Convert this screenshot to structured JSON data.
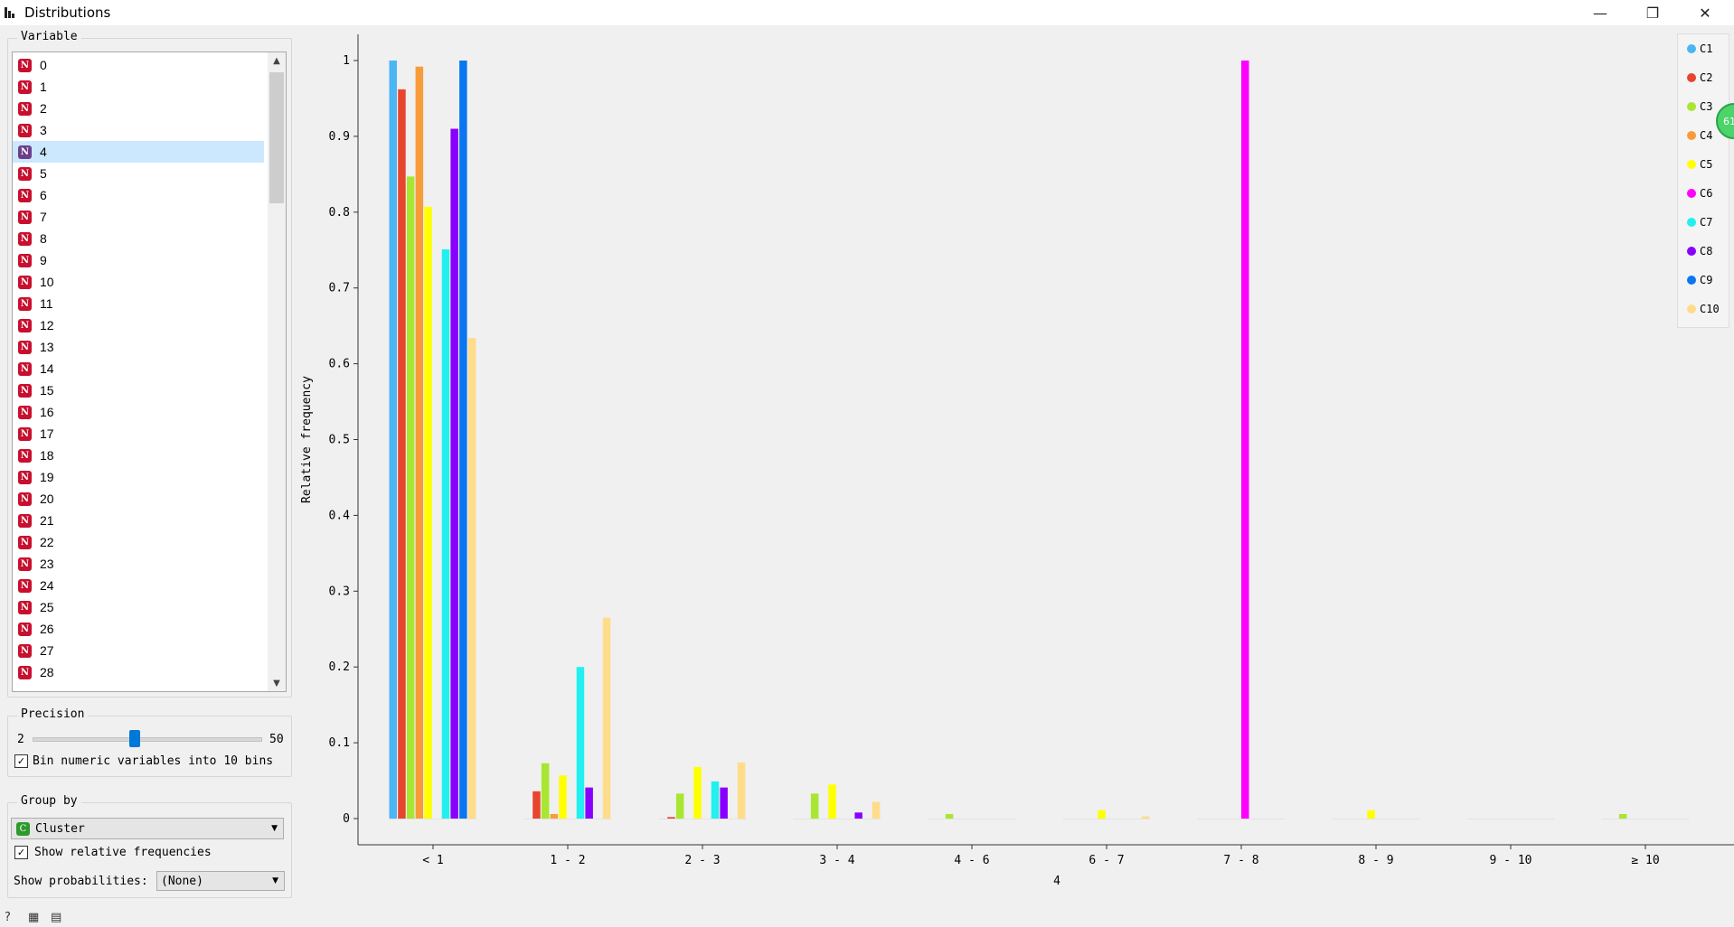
{
  "window": {
    "title": "Distributions",
    "icons": {
      "app": "bar-chart-icon",
      "minimize": "minimize-icon",
      "maximize": "restore-icon",
      "close": "close-icon"
    }
  },
  "variable_panel": {
    "title": "Variable",
    "selected": "4",
    "items": [
      "0",
      "1",
      "2",
      "3",
      "4",
      "5",
      "6",
      "7",
      "8",
      "9",
      "10",
      "11",
      "12",
      "13",
      "14",
      "15",
      "16",
      "17",
      "18",
      "19",
      "20",
      "21",
      "22",
      "23",
      "24",
      "25",
      "26",
      "27",
      "28"
    ],
    "badge": "N"
  },
  "precision": {
    "title": "Precision",
    "min_label": "2",
    "max_label": "50",
    "value": 0.45,
    "bin_checkbox_label": "Bin numeric variables into 10 bins",
    "bin_checked": true
  },
  "group_by": {
    "title": "Group by",
    "selected": "Cluster",
    "badge": "C",
    "show_relative_label": "Show relative frequencies",
    "show_relative_checked": true,
    "show_prob_label": "Show probabilities:",
    "show_prob_value": "(None)"
  },
  "legend": {
    "items": [
      {
        "label": "C1",
        "color": "#4cb6f4"
      },
      {
        "label": "C2",
        "color": "#e8452f"
      },
      {
        "label": "C3",
        "color": "#a8e632"
      },
      {
        "label": "C4",
        "color": "#f89c3a"
      },
      {
        "label": "C5",
        "color": "#ffff00"
      },
      {
        "label": "C6",
        "color": "#ff00ff"
      },
      {
        "label": "C7",
        "color": "#22f0f0"
      },
      {
        "label": "C8",
        "color": "#8a00ff"
      },
      {
        "label": "C9",
        "color": "#0a76f0"
      },
      {
        "label": "C10",
        "color": "#ffdc8a"
      }
    ]
  },
  "badge_text": "61",
  "chart_data": {
    "type": "bar",
    "xlabel": "4",
    "ylabel": "Relative frequency",
    "ylim": [
      0,
      1
    ],
    "yticks": [
      "0",
      "0.1",
      "0.2",
      "0.3",
      "0.4",
      "0.5",
      "0.6",
      "0.7",
      "0.8",
      "0.9",
      "1"
    ],
    "categories": [
      "< 1",
      "1 - 2",
      "2 - 3",
      "3 - 4",
      "4 - 6",
      "6 - 7",
      "7 - 8",
      "8 - 9",
      "9 - 10",
      "≥ 10"
    ],
    "series": [
      {
        "name": "C1",
        "values": [
          1.0,
          0,
          0,
          0,
          0,
          0,
          0,
          0,
          0,
          0
        ]
      },
      {
        "name": "C2",
        "values": [
          0.962,
          0.036,
          0.002,
          0,
          0,
          0,
          0,
          0,
          0,
          0
        ]
      },
      {
        "name": "C3",
        "values": [
          0.847,
          0.073,
          0.033,
          0.033,
          0.006,
          0,
          0,
          0,
          0,
          0.006
        ]
      },
      {
        "name": "C4",
        "values": [
          0.992,
          0.006,
          0,
          0,
          0,
          0,
          0,
          0,
          0,
          0
        ]
      },
      {
        "name": "C5",
        "values": [
          0.807,
          0.057,
          0.068,
          0.045,
          0,
          0.011,
          0,
          0.011,
          0,
          0
        ]
      },
      {
        "name": "C6",
        "values": [
          0,
          0,
          0,
          0,
          0,
          0,
          1.0,
          0,
          0,
          0
        ]
      },
      {
        "name": "C7",
        "values": [
          0.751,
          0.2,
          0.049,
          0,
          0,
          0,
          0,
          0,
          0,
          0
        ]
      },
      {
        "name": "C8",
        "values": [
          0.91,
          0.041,
          0.041,
          0.008,
          0,
          0,
          0,
          0,
          0,
          0
        ]
      },
      {
        "name": "C9",
        "values": [
          1.0,
          0,
          0,
          0,
          0,
          0,
          0,
          0,
          0,
          0
        ]
      },
      {
        "name": "C10",
        "values": [
          0.634,
          0.265,
          0.074,
          0.022,
          0,
          0.003,
          0,
          0,
          0,
          0
        ]
      }
    ]
  }
}
